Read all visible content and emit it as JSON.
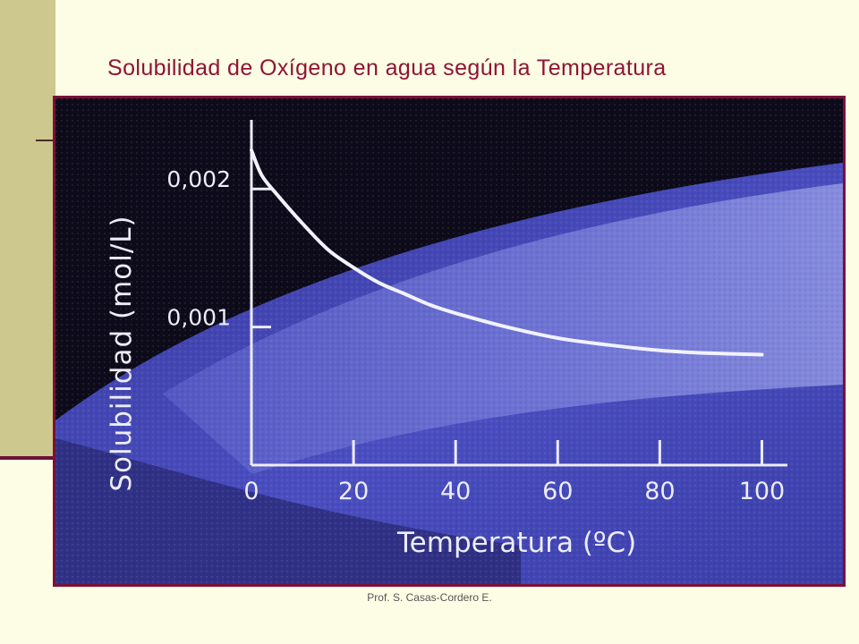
{
  "slide": {
    "title": "Solubilidad de Oxígeno en agua según la Temperatura",
    "footer": "Prof. S. Casas-Cordero E."
  },
  "colors": {
    "title": "#8e1435",
    "frame": "#7e1035",
    "sidebar": "#cdc98e",
    "background": "#fdfce4",
    "curve": "#f2f2ff",
    "axis_text": "#ececf6"
  },
  "chart_data": {
    "type": "line",
    "title": "",
    "xlabel": "Temperatura (ºC)",
    "ylabel": "Solubilidad (mol/L)",
    "xlim": [
      0,
      105
    ],
    "ylim": [
      0,
      0.0025
    ],
    "x_ticks": [
      0,
      20,
      40,
      60,
      80,
      100
    ],
    "x_tick_labels": [
      "0",
      "20",
      "40",
      "60",
      "80",
      "100"
    ],
    "y_ticks": [
      0.001,
      0.002
    ],
    "y_tick_labels": [
      "0,001",
      "0,002"
    ],
    "grid": false,
    "series": [
      {
        "x": [
          0,
          2,
          5,
          10,
          15,
          20,
          25,
          30,
          35,
          40,
          50,
          60,
          70,
          80,
          90,
          100
        ],
        "values": [
          0.00228,
          0.0021,
          0.00196,
          0.00175,
          0.00156,
          0.00143,
          0.00132,
          0.00124,
          0.00116,
          0.0011,
          0.001,
          0.00092,
          0.00087,
          0.00083,
          0.00081,
          0.0008
        ]
      }
    ]
  }
}
